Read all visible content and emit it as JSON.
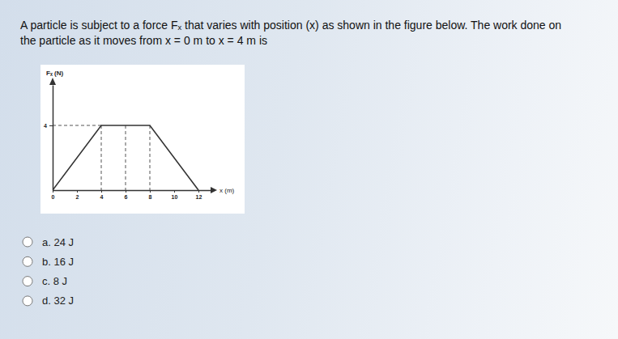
{
  "question": [
    "A particle is subject to a force Fₓ that varies with position (x) as shown in the figure below. The work done on",
    "the particle as it moves from x = 0 m to x = 4 m is"
  ],
  "chart_data": {
    "type": "line",
    "x": [
      0,
      4,
      6,
      8,
      12
    ],
    "values": [
      0,
      4,
      4,
      4,
      0
    ],
    "xlim": [
      0,
      13
    ],
    "ylim": [
      0,
      6.5
    ],
    "xticks": [
      0,
      2,
      4,
      6,
      8,
      10,
      12
    ],
    "yticks": [
      4
    ],
    "x_label": "x (m)",
    "y_label": "Fₓ (N)",
    "color": "#333333"
  },
  "options": [
    "a. 24 J",
    "b. 16 J",
    "c. 8 J",
    "d. 32 J"
  ]
}
